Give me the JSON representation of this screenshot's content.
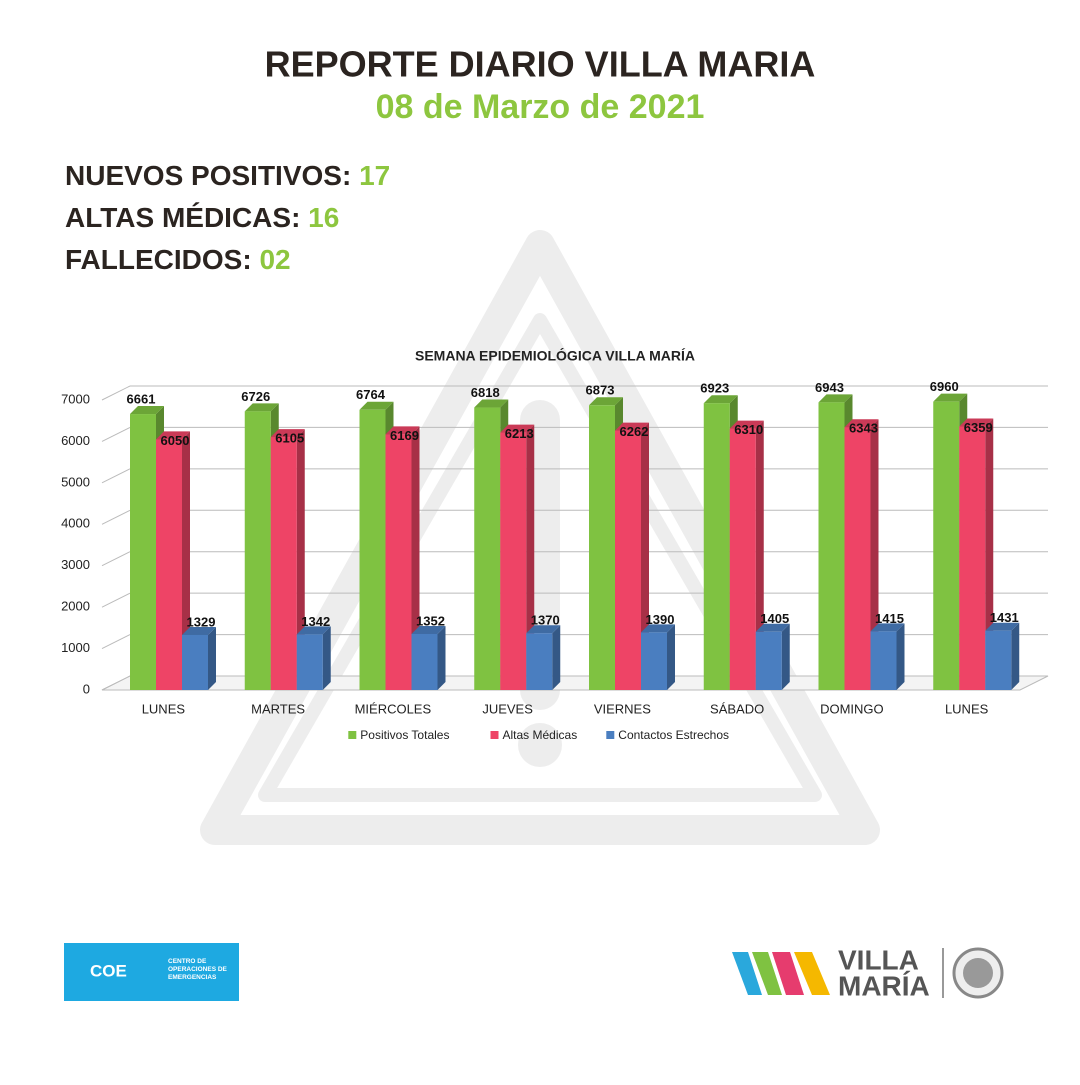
{
  "header": {
    "title": "REPORTE DIARIO VILLA MARIA",
    "date": "08 de Marzo de 2021"
  },
  "stats": [
    {
      "label": "NUEVOS POSITIVOS:",
      "value": "17"
    },
    {
      "label": "ALTAS MÉDICAS:",
      "value": "16"
    },
    {
      "label": "FALLECIDOS:",
      "value": "02"
    }
  ],
  "chart_data": {
    "type": "bar",
    "title": "SEMANA EPIDEMIOLÓGICA VILLA MARÍA",
    "categories": [
      "LUNES",
      "MARTES",
      "MIÉRCOLES",
      "JUEVES",
      "VIERNES",
      "SÁBADO",
      "DOMINGO",
      "LUNES"
    ],
    "series": [
      {
        "name": "Positivos Totales",
        "color": "#7fc241",
        "values": [
          6661,
          6726,
          6764,
          6818,
          6873,
          6923,
          6943,
          6960
        ]
      },
      {
        "name": "Altas Médicas",
        "color": "#ee4466",
        "values": [
          6050,
          6105,
          6169,
          6213,
          6262,
          6310,
          6343,
          6359
        ]
      },
      {
        "name": "Contactos Estrechos",
        "color": "#4a7ec0",
        "values": [
          1329,
          1342,
          1352,
          1370,
          1390,
          1405,
          1415,
          1431
        ]
      }
    ],
    "ylim": [
      0,
      7000
    ],
    "yticks": [
      0,
      1000,
      2000,
      3000,
      4000,
      5000,
      6000,
      7000
    ],
    "grid": true,
    "legend": "bottom"
  },
  "logos": {
    "coe": "COE",
    "coe_text": "CENTRO DE OPERACIONES DE EMERGENCIAS",
    "city_1": "VILLA",
    "city_2": "MARÍA"
  }
}
